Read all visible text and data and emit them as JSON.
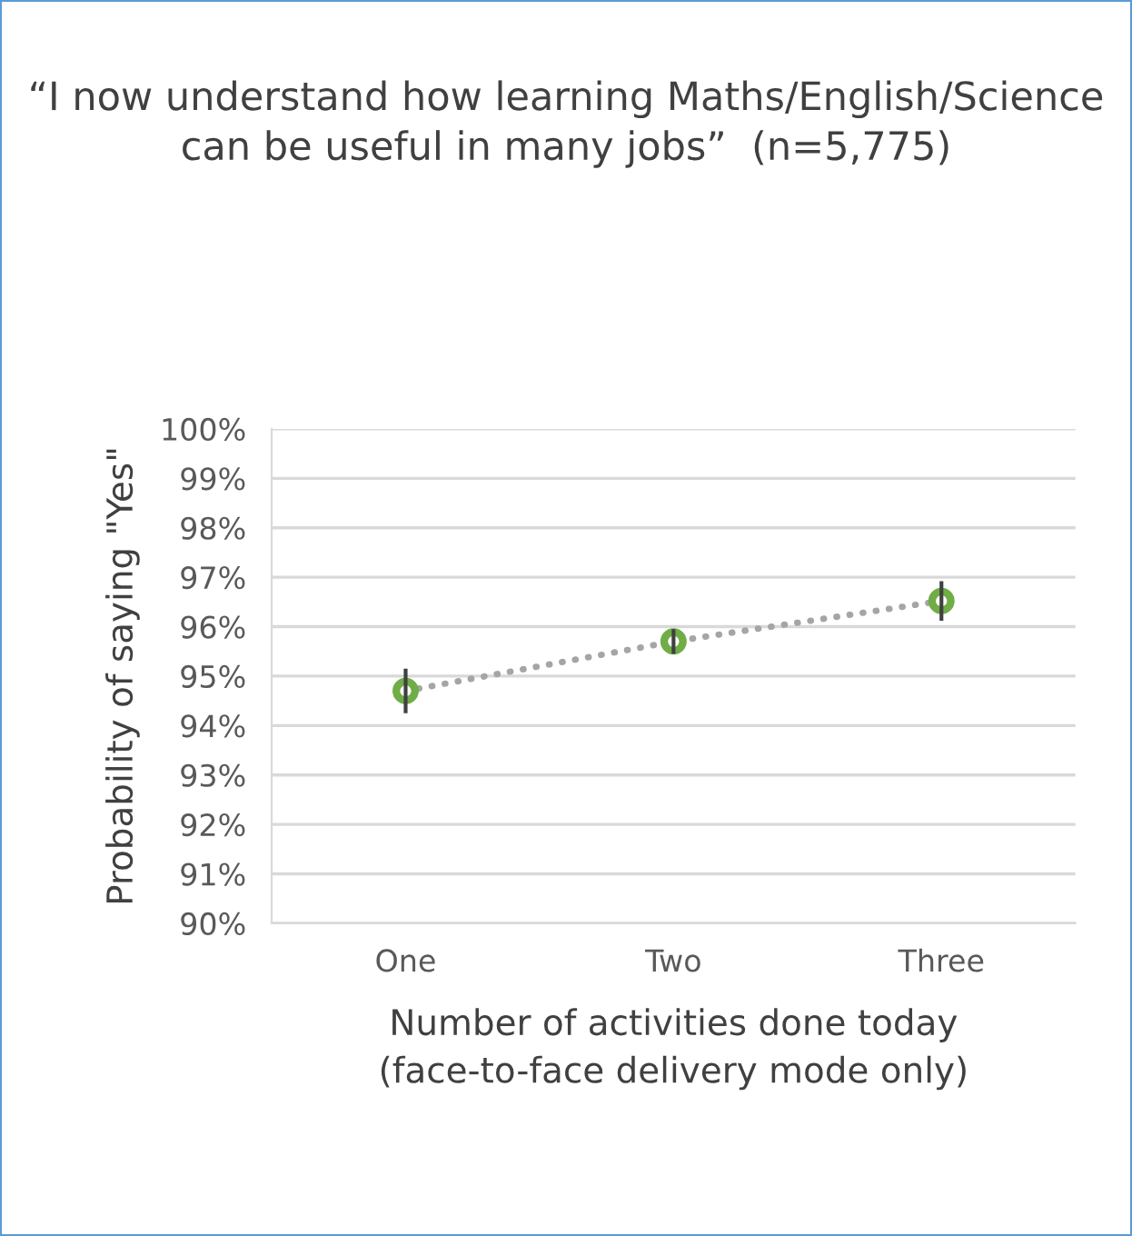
{
  "chart_data": {
    "type": "line",
    "title": "“I now understand how learning Maths/English/Science can be useful in many jobs”  (n=5,775)",
    "xlabel": "Number of activities done today\n(face-to-face delivery mode only)",
    "ylabel": "Probability of saying \"Yes\"",
    "categories": [
      "One",
      "Two",
      "Three"
    ],
    "series": [
      {
        "color": "#a5a5a5",
        "line_style": "dotted",
        "values": [
          94.7,
          95.7,
          96.52
        ]
      },
      {
        "type": "scatter",
        "color": "#70ad47",
        "marker": "circle",
        "values": [
          94.7,
          95.7,
          96.52
        ],
        "errors": [
          0.45,
          0.25,
          0.4
        ]
      }
    ],
    "ylim": [
      90,
      100
    ],
    "yticks": [
      {
        "value": 90,
        "label": "90%"
      },
      {
        "value": 91,
        "label": "91%"
      },
      {
        "value": 92,
        "label": "92%"
      },
      {
        "value": 93,
        "label": "93%"
      },
      {
        "value": 94,
        "label": "94%"
      },
      {
        "value": 95,
        "label": "95%"
      },
      {
        "value": 96,
        "label": "96%"
      },
      {
        "value": 97,
        "label": "97%"
      },
      {
        "value": 98,
        "label": "98%"
      },
      {
        "value": 99,
        "label": "99%"
      },
      {
        "value": 100,
        "label": "100%"
      }
    ],
    "grid": "y",
    "legend": false
  }
}
